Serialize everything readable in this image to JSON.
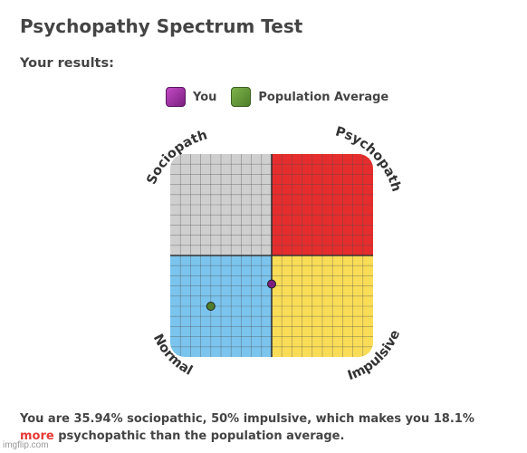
{
  "page": {
    "title": "Psychopathy Spectrum Test",
    "results_heading": "Your results:"
  },
  "legend": {
    "you_label": "You",
    "you_color": "#7b1f7f",
    "population_label": "Population Average",
    "population_color": "#4f7f2a"
  },
  "chart": {
    "quadrants": [
      {
        "position": "top-left",
        "color": "#cfcfcf",
        "label": "Sociopath"
      },
      {
        "position": "top-right",
        "color": "#e52d2d",
        "label": "Psychopath"
      },
      {
        "position": "bottom-left",
        "color": "#7bc4ed",
        "label": "Normal"
      },
      {
        "position": "bottom-right",
        "color": "#f9dd57",
        "label": "Impulsive"
      }
    ],
    "grid_color": "#4d4d4d",
    "axis_color": "#333333"
  },
  "chart_data": {
    "type": "scatter",
    "title": "",
    "xlabel": "",
    "ylabel": "",
    "xlim": [
      0,
      100
    ],
    "ylim": [
      0,
      100
    ],
    "grid": true,
    "quadrant_labels": {
      "top_left": "Sociopath",
      "top_right": "Psychopath",
      "bottom_left": "Normal",
      "bottom_right": "Impulsive"
    },
    "series": [
      {
        "name": "You",
        "color": "#7b1f7f",
        "points": [
          {
            "x": 50,
            "y": 35.94
          }
        ]
      },
      {
        "name": "Population Average",
        "color": "#4f7f2a",
        "points": [
          {
            "x": 20,
            "y": 25
          }
        ]
      }
    ]
  },
  "result": {
    "before": "You are 35.94% sociopathic, 50% impulsive, which makes you 18.1% ",
    "highlight": "more",
    "after": " psychopathic than the population average."
  },
  "watermark": "imgflip.com"
}
